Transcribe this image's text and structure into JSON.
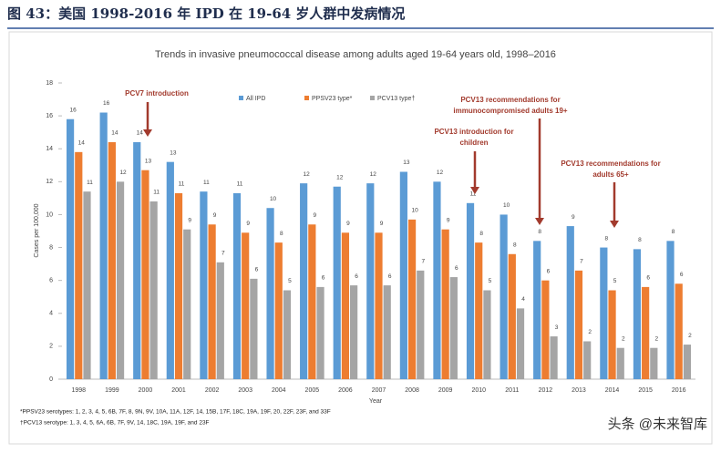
{
  "header": {
    "title": "图 43：美国 1998-2016 年 IPD 在 19-64 岁人群中发病情况"
  },
  "chart_data": {
    "type": "bar",
    "title": "Trends in invasive pneumococcal disease among adults aged 19-64 years old, 1998–2016",
    "x_label": "Year",
    "y_label": "Cases per 100,000",
    "categories": [
      "1998",
      "1999",
      "2000",
      "2001",
      "2002",
      "2003",
      "2004",
      "2005",
      "2006",
      "2007",
      "2008",
      "2009",
      "2010",
      "2011",
      "2012",
      "2013",
      "2014",
      "2015",
      "2016"
    ],
    "series": [
      {
        "name": "All IPD",
        "color": "#5b9bd5",
        "values": [
          15.8,
          16.2,
          14.4,
          13.2,
          11.4,
          11.3,
          10.4,
          11.9,
          11.7,
          11.9,
          12.6,
          12.0,
          10.7,
          10.0,
          8.4,
          9.3,
          8.0,
          7.9,
          8.4
        ],
        "value_labels": [
          "16",
          "16",
          "14",
          "13",
          "11",
          "11",
          "10",
          "12",
          "12",
          "12",
          "13",
          "12",
          "11",
          "10",
          "8",
          "9",
          "8",
          "8",
          "8"
        ]
      },
      {
        "name": "PPSV23 type*",
        "color": "#ed7d31",
        "values": [
          13.8,
          14.4,
          12.7,
          11.3,
          9.4,
          8.9,
          8.3,
          9.4,
          8.9,
          8.9,
          9.7,
          9.1,
          8.3,
          7.6,
          6.0,
          6.6,
          5.4,
          5.6,
          5.8
        ],
        "value_labels": [
          "14",
          "14",
          "13",
          "11",
          "9",
          "9",
          "8",
          "9",
          "9",
          "9",
          "10",
          "9",
          "8",
          "8",
          "6",
          "7",
          "5",
          "6",
          "6"
        ]
      },
      {
        "name": "PCV13 type†",
        "color": "#a5a5a5",
        "values": [
          11.4,
          12.0,
          10.8,
          9.1,
          7.1,
          6.1,
          5.4,
          5.6,
          5.7,
          5.7,
          6.6,
          6.2,
          5.4,
          4.3,
          2.6,
          2.3,
          1.9,
          1.9,
          2.1
        ],
        "value_labels": [
          "11",
          "12",
          "11",
          "9",
          "7",
          "6",
          "5",
          "6",
          "6",
          "6",
          "7",
          "6",
          "5",
          "4",
          "3",
          "2",
          "2",
          "2",
          "2"
        ]
      }
    ],
    "ylim": [
      0,
      18
    ],
    "yticks": [
      0,
      2,
      4,
      6,
      8,
      10,
      12,
      14,
      16,
      18
    ],
    "grid": false,
    "annotations": [
      {
        "lines": [
          "PCV7 introduction"
        ]
      },
      {
        "lines": [
          "PCV13 recommendations for",
          "immunocompromised adults 19+"
        ]
      },
      {
        "lines": [
          "PCV13 introduction for",
          "children"
        ]
      },
      {
        "lines": [
          "PCV13 recommendations for",
          "adults 65+"
        ]
      }
    ],
    "footnotes": [
      "*PPSV23 serotypes: 1, 2, 3, 4, 5, 6B, 7F, 8, 9N, 9V, 10A, 11A, 12F, 14, 15B, 17F, 18C, 19A, 19F, 20, 22F, 23F, and 33F",
      "†PCV13 serotype: 1, 3, 4, 5, 6A, 6B, 7F, 9V, 14, 18C, 19A, 19F, and 23F"
    ]
  },
  "watermark": "头条 @未来智库"
}
